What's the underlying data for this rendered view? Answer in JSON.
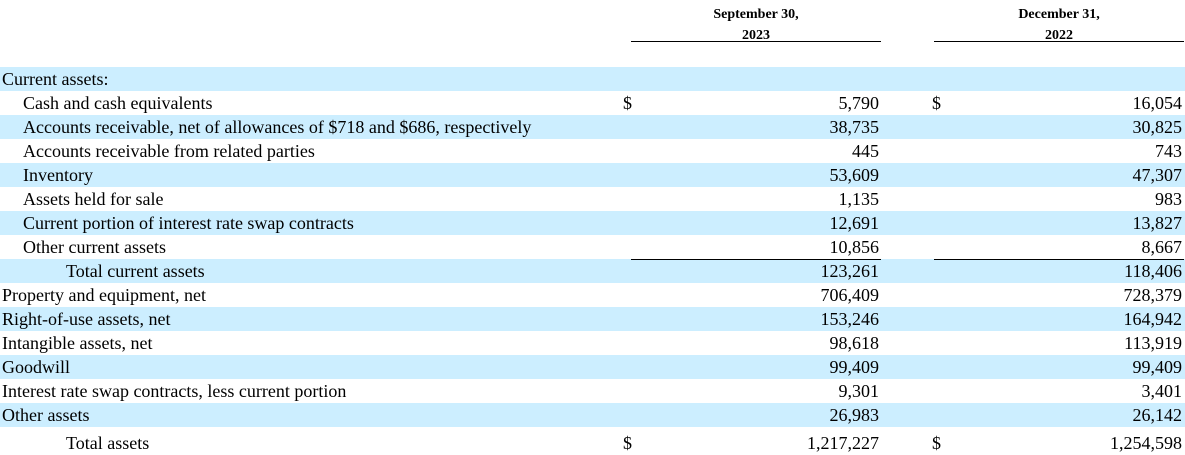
{
  "columns": [
    {
      "line1": "September 30,",
      "line2": "2023"
    },
    {
      "line1": "December 31,",
      "line2": "2022"
    }
  ],
  "currency_symbol": "$",
  "rows": [
    {
      "label": "Current assets:",
      "indent": 0,
      "values": [
        "",
        ""
      ],
      "dollar": false
    },
    {
      "label": "Cash and cash equivalents",
      "indent": 1,
      "values": [
        "5,790",
        "16,054"
      ],
      "dollar": true
    },
    {
      "label": "Accounts receivable, net of allowances of $718 and $686, respectively",
      "indent": 1,
      "values": [
        "38,735",
        "30,825"
      ],
      "dollar": false
    },
    {
      "label": "Accounts receivable from related parties",
      "indent": 1,
      "values": [
        "445",
        "743"
      ],
      "dollar": false
    },
    {
      "label": "Inventory",
      "indent": 1,
      "values": [
        "53,609",
        "47,307"
      ],
      "dollar": false
    },
    {
      "label": "Assets held for sale",
      "indent": 1,
      "values": [
        "1,135",
        "983"
      ],
      "dollar": false
    },
    {
      "label": "Current portion of interest rate swap contracts",
      "indent": 1,
      "values": [
        "12,691",
        "13,827"
      ],
      "dollar": false
    },
    {
      "label": "Other current assets",
      "indent": 1,
      "values": [
        "10,856",
        "8,667"
      ],
      "dollar": false
    },
    {
      "label": "Total current assets",
      "indent": 2,
      "values": [
        "123,261",
        "118,406"
      ],
      "dollar": false
    },
    {
      "label": "Property and equipment, net",
      "indent": 0,
      "values": [
        "706,409",
        "728,379"
      ],
      "dollar": false
    },
    {
      "label": "Right-of-use assets, net",
      "indent": 0,
      "values": [
        "153,246",
        "164,942"
      ],
      "dollar": false
    },
    {
      "label": "Intangible assets, net",
      "indent": 0,
      "values": [
        "98,618",
        "113,919"
      ],
      "dollar": false
    },
    {
      "label": "Goodwill",
      "indent": 0,
      "values": [
        "99,409",
        "99,409"
      ],
      "dollar": false
    },
    {
      "label": "Interest rate swap contracts, less current portion",
      "indent": 0,
      "values": [
        "9,301",
        "3,401"
      ],
      "dollar": false
    },
    {
      "label": "Other assets",
      "indent": 0,
      "values": [
        "26,983",
        "26,142"
      ],
      "dollar": false
    },
    {
      "label": "Total assets",
      "indent": 2,
      "values": [
        "1,217,227",
        "1,254,598"
      ],
      "dollar": true
    }
  ]
}
